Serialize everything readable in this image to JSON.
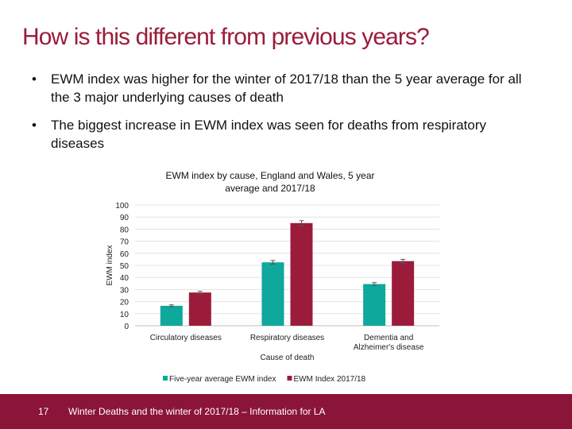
{
  "slide": {
    "title": "How is this different from previous years?",
    "bullets": [
      "EWM index was higher for the winter of 2017/18 than the 5 year average for all the 3 major underlying causes of death",
      "The biggest increase in EWM index was seen for deaths from respiratory diseases"
    ],
    "bullet_marker": "•"
  },
  "chart_data": {
    "type": "bar",
    "title": "EWM index by cause, England and Wales, 5 year average and 2017/18",
    "title_lines": [
      "EWM index by cause, England and Wales, 5 year",
      "average and 2017/18"
    ],
    "xlabel": "Cause of death",
    "ylabel": "EWM index",
    "ylim": [
      0,
      100
    ],
    "yticks": [
      0,
      10,
      20,
      30,
      40,
      50,
      60,
      70,
      80,
      90,
      100
    ],
    "categories": [
      "Circulatory diseases",
      "Respiratory diseases",
      "Dementia and Alzheimer's disease"
    ],
    "category_lines": [
      [
        "Circulatory diseases"
      ],
      [
        "Respiratory diseases"
      ],
      [
        "Dementia and",
        "Alzheimer's disease"
      ]
    ],
    "series": [
      {
        "name": "Five-year average EWM index",
        "values": [
          16.5,
          52.5,
          34.5
        ],
        "errors": [
          0.8,
          1.5,
          1.2
        ],
        "color": "#0fa89c"
      },
      {
        "name": "EWM Index 2017/18",
        "values": [
          27.5,
          85,
          53.5
        ],
        "errors": [
          1.0,
          2.0,
          1.5
        ],
        "color": "#9b1c3a"
      }
    ],
    "grid": true,
    "legend": "bottom"
  },
  "footer": {
    "page_number": "17",
    "text": "Winter Deaths and the winter of 2017/18 – Information for LA",
    "color": "#8a1538"
  }
}
